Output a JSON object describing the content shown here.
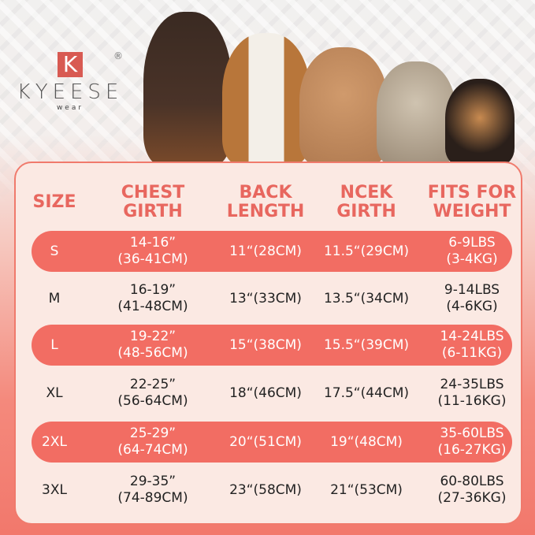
{
  "brand": {
    "logo_letter": "K",
    "name": "KYEESE",
    "sub": "wear",
    "reg": "®"
  },
  "colors": {
    "accent": "#e8675f",
    "row_highlight": "#f26d63",
    "card_bg": "#fbe9e3"
  },
  "headers": [
    [
      "SIZE",
      ""
    ],
    [
      "CHEST",
      "GIRTH"
    ],
    [
      "BACK",
      "LENGTH"
    ],
    [
      "NCEK",
      "GIRTH"
    ],
    [
      "FITS FOR",
      "WEIGHT"
    ]
  ],
  "rows": [
    {
      "size": "S",
      "chest": [
        "14-16”",
        "(36-41CM)"
      ],
      "back": "11“(28CM)",
      "neck": "11.5“(29CM)",
      "weight": [
        "6-9LBS",
        "(3-4KG)"
      ]
    },
    {
      "size": "M",
      "chest": [
        "16-19”",
        "(41-48CM)"
      ],
      "back": "13“(33CM)",
      "neck": "13.5“(34CM)",
      "weight": [
        "9-14LBS",
        "(4-6KG)"
      ]
    },
    {
      "size": "L",
      "chest": [
        "19-22”",
        "(48-56CM)"
      ],
      "back": "15“(38CM)",
      "neck": "15.5“(39CM)",
      "weight": [
        "14-24LBS",
        "(6-11KG)"
      ]
    },
    {
      "size": "XL",
      "chest": [
        "22-25”",
        "(56-64CM)"
      ],
      "back": "18“(46CM)",
      "neck": "17.5“(44CM)",
      "weight": [
        "24-35LBS",
        "(11-16KG)"
      ]
    },
    {
      "size": "2XL",
      "chest": [
        "25-29”",
        "(64-74CM)"
      ],
      "back": "20“(51CM)",
      "neck": "19“(48CM)",
      "weight": [
        "35-60LBS",
        "(16-27KG)"
      ]
    },
    {
      "size": "3XL",
      "chest": [
        "29-35”",
        "(74-89CM)"
      ],
      "back": "23“(58CM)",
      "neck": "21“(53CM)",
      "weight": [
        "60-80LBS",
        "(27-36KG)"
      ]
    }
  ]
}
